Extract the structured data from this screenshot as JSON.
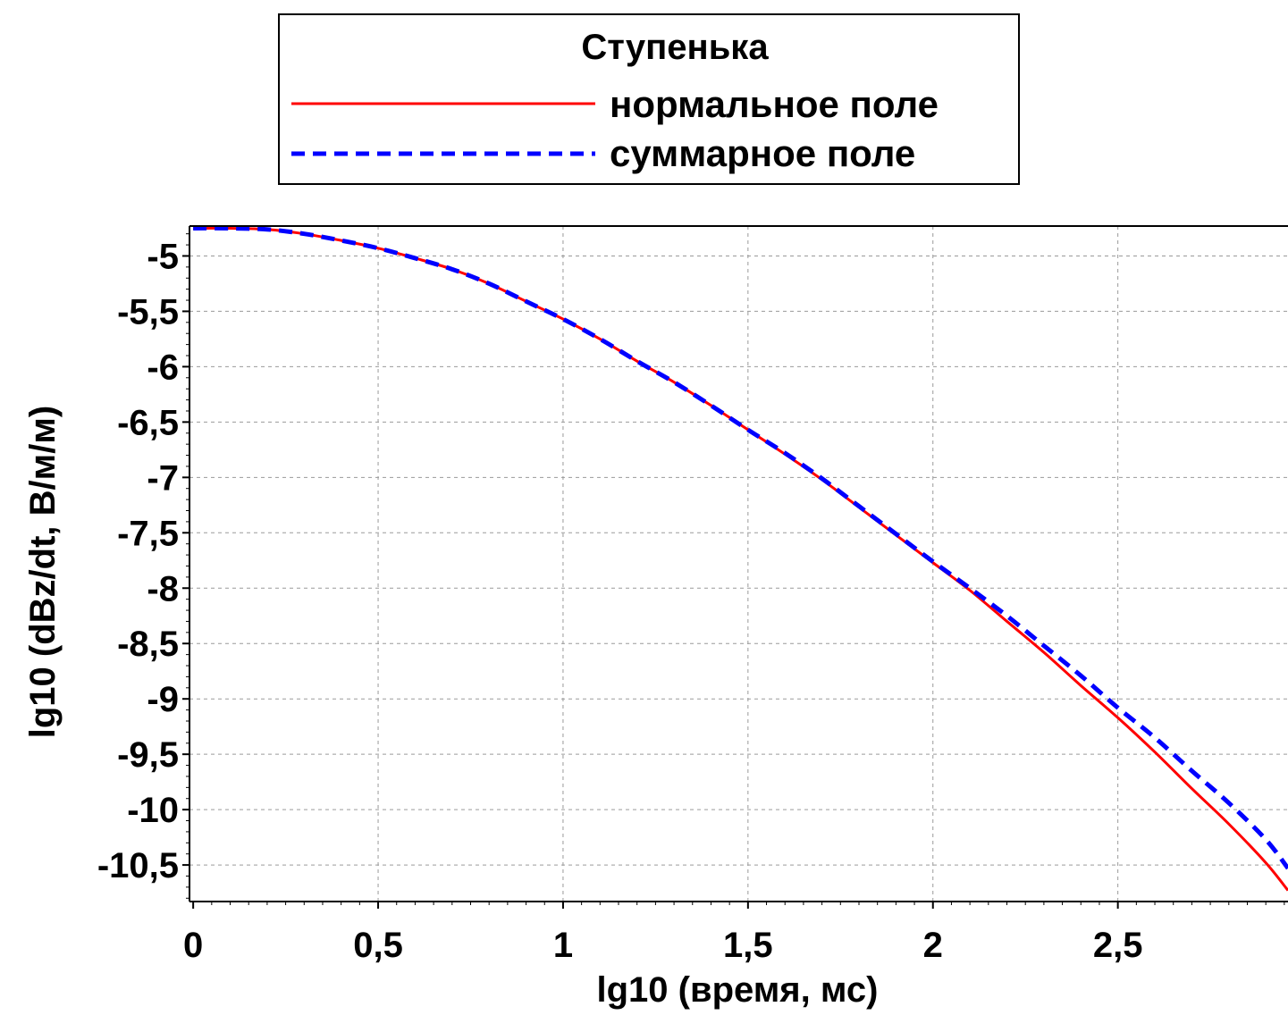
{
  "chart_data": {
    "type": "line",
    "title": "",
    "xlabel": "lg10 (время, мс)",
    "ylabel": "lg10 (dBz/dt, В/м/м)",
    "xlim": [
      -0.01,
      2.96
    ],
    "ylim": [
      -10.83,
      -4.73
    ],
    "grid": true,
    "legend": {
      "title": "Ступенька",
      "position": "top-center, outside plot"
    },
    "x_ticks": [
      {
        "value": 0,
        "label": "0"
      },
      {
        "value": 0.5,
        "label": "0,5"
      },
      {
        "value": 1,
        "label": "1"
      },
      {
        "value": 1.5,
        "label": "1,5"
      },
      {
        "value": 2,
        "label": "2"
      },
      {
        "value": 2.5,
        "label": "2,5"
      }
    ],
    "y_ticks": [
      {
        "value": -5,
        "label": "-5"
      },
      {
        "value": -5.5,
        "label": "-5,5"
      },
      {
        "value": -6,
        "label": "-6"
      },
      {
        "value": -6.5,
        "label": "-6,5"
      },
      {
        "value": -7,
        "label": "-7"
      },
      {
        "value": -7.5,
        "label": "-7,5"
      },
      {
        "value": -8,
        "label": "-8"
      },
      {
        "value": -8.5,
        "label": "-8,5"
      },
      {
        "value": -9,
        "label": "-9"
      },
      {
        "value": -9.5,
        "label": "-9,5"
      },
      {
        "value": -10,
        "label": "-10"
      },
      {
        "value": -10.5,
        "label": "-10,5"
      }
    ],
    "series": [
      {
        "name": "нормальное поле",
        "color": "#ff0000",
        "style": "solid",
        "x": [
          0,
          0.1,
          0.2,
          0.3,
          0.4,
          0.5,
          0.6,
          0.7,
          0.8,
          0.9,
          1.0,
          1.1,
          1.2,
          1.3,
          1.4,
          1.5,
          1.6,
          1.7,
          1.8,
          1.9,
          2.0,
          2.1,
          2.2,
          2.3,
          2.4,
          2.5,
          2.6,
          2.7,
          2.8,
          2.9,
          2.96
        ],
        "y": [
          -4.75,
          -4.75,
          -4.76,
          -4.8,
          -4.86,
          -4.93,
          -5.02,
          -5.12,
          -5.25,
          -5.41,
          -5.57,
          -5.75,
          -5.95,
          -6.14,
          -6.35,
          -6.57,
          -6.79,
          -7.02,
          -7.27,
          -7.52,
          -7.77,
          -8.02,
          -8.3,
          -8.58,
          -8.88,
          -9.17,
          -9.48,
          -9.81,
          -10.13,
          -10.48,
          -10.73
        ]
      },
      {
        "name": "суммарное поле",
        "color": "#0000ff",
        "style": "dashed",
        "x": [
          0,
          0.1,
          0.2,
          0.3,
          0.4,
          0.5,
          0.6,
          0.7,
          0.8,
          0.9,
          1.0,
          1.1,
          1.2,
          1.3,
          1.4,
          1.5,
          1.6,
          1.7,
          1.8,
          1.9,
          2.0,
          2.1,
          2.2,
          2.3,
          2.4,
          2.5,
          2.6,
          2.7,
          2.8,
          2.9,
          2.96
        ],
        "y": [
          -4.75,
          -4.75,
          -4.76,
          -4.8,
          -4.86,
          -4.93,
          -5.02,
          -5.12,
          -5.25,
          -5.41,
          -5.57,
          -5.75,
          -5.95,
          -6.14,
          -6.35,
          -6.57,
          -6.78,
          -7.01,
          -7.26,
          -7.51,
          -7.76,
          -8.0,
          -8.25,
          -8.52,
          -8.79,
          -9.08,
          -9.35,
          -9.65,
          -9.94,
          -10.27,
          -10.53
        ]
      }
    ]
  }
}
